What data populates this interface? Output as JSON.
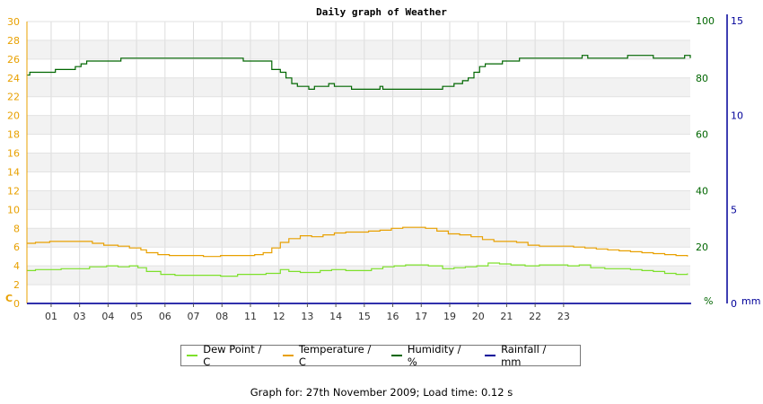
{
  "chart_data": {
    "type": "line",
    "title": "Daily graph of Weather",
    "axes": {
      "left": {
        "unit_label": "C",
        "ylim": [
          0,
          30
        ],
        "ticks": [
          0,
          2,
          4,
          6,
          8,
          10,
          12,
          14,
          16,
          18,
          20,
          22,
          24,
          26,
          28,
          30
        ],
        "color": "#e8a000"
      },
      "right_humidity": {
        "unit_label": "%",
        "ylim": [
          0,
          100
        ],
        "ticks": [
          0,
          20,
          40,
          60,
          80,
          100
        ],
        "color": "#006600"
      },
      "right_rainfall": {
        "unit_label": "mm",
        "ylim": [
          0,
          15
        ],
        "ticks": [
          0,
          5,
          10,
          15
        ],
        "color": "#000099"
      }
    },
    "x_range_hours": [
      0,
      23.3
    ],
    "x_tick_labels": [
      "01",
      "03",
      "04",
      "05",
      "06",
      "07",
      "08",
      "11",
      "12",
      "13",
      "14",
      "15",
      "16",
      "17",
      "19",
      "20",
      "21",
      "22",
      "23"
    ],
    "grid": true,
    "series": [
      {
        "name": "Dew Point / C",
        "axis": "left",
        "color": "#7de02a",
        "points": [
          [
            0,
            3.5
          ],
          [
            0.3,
            3.6
          ],
          [
            0.9,
            3.6
          ],
          [
            1.2,
            3.7
          ],
          [
            1.8,
            3.7
          ],
          [
            2.2,
            3.9
          ],
          [
            2.8,
            4.0
          ],
          [
            3.2,
            3.9
          ],
          [
            3.6,
            4.0
          ],
          [
            3.9,
            3.8
          ],
          [
            4.2,
            3.4
          ],
          [
            4.7,
            3.1
          ],
          [
            5.2,
            3.0
          ],
          [
            6.0,
            3.0
          ],
          [
            6.8,
            2.9
          ],
          [
            7.4,
            3.1
          ],
          [
            8.0,
            3.1
          ],
          [
            8.4,
            3.2
          ],
          [
            8.9,
            3.6
          ],
          [
            9.2,
            3.4
          ],
          [
            9.6,
            3.3
          ],
          [
            9.9,
            3.3
          ],
          [
            10.3,
            3.5
          ],
          [
            10.7,
            3.6
          ],
          [
            11.2,
            3.5
          ],
          [
            11.6,
            3.5
          ],
          [
            12.1,
            3.7
          ],
          [
            12.5,
            3.9
          ],
          [
            12.9,
            4.0
          ],
          [
            13.3,
            4.1
          ],
          [
            13.7,
            4.1
          ],
          [
            14.1,
            4.0
          ],
          [
            14.6,
            3.7
          ],
          [
            15.0,
            3.8
          ],
          [
            15.4,
            3.9
          ],
          [
            15.8,
            4.0
          ],
          [
            16.2,
            4.3
          ],
          [
            16.6,
            4.2
          ],
          [
            17.0,
            4.1
          ],
          [
            17.5,
            4.0
          ],
          [
            18.0,
            4.1
          ],
          [
            18.5,
            4.1
          ],
          [
            19.0,
            4.0
          ],
          [
            19.4,
            4.1
          ],
          [
            19.8,
            3.8
          ],
          [
            20.3,
            3.7
          ],
          [
            20.8,
            3.7
          ],
          [
            21.2,
            3.6
          ],
          [
            21.6,
            3.5
          ],
          [
            22.0,
            3.4
          ],
          [
            22.4,
            3.2
          ],
          [
            22.8,
            3.1
          ],
          [
            23.2,
            3.2
          ]
        ]
      },
      {
        "name": "Temperature / C",
        "axis": "left",
        "color": "#e8a000",
        "points": [
          [
            0,
            6.4
          ],
          [
            0.3,
            6.5
          ],
          [
            0.8,
            6.6
          ],
          [
            1.4,
            6.6
          ],
          [
            1.9,
            6.6
          ],
          [
            2.3,
            6.4
          ],
          [
            2.7,
            6.2
          ],
          [
            3.2,
            6.1
          ],
          [
            3.6,
            5.9
          ],
          [
            4.0,
            5.7
          ],
          [
            4.2,
            5.4
          ],
          [
            4.6,
            5.2
          ],
          [
            5.0,
            5.1
          ],
          [
            5.6,
            5.1
          ],
          [
            6.2,
            5.0
          ],
          [
            6.8,
            5.1
          ],
          [
            7.4,
            5.1
          ],
          [
            8.0,
            5.2
          ],
          [
            8.3,
            5.4
          ],
          [
            8.6,
            5.9
          ],
          [
            8.9,
            6.5
          ],
          [
            9.2,
            6.9
          ],
          [
            9.6,
            7.2
          ],
          [
            10.0,
            7.1
          ],
          [
            10.4,
            7.3
          ],
          [
            10.8,
            7.5
          ],
          [
            11.2,
            7.6
          ],
          [
            11.6,
            7.6
          ],
          [
            12.0,
            7.7
          ],
          [
            12.4,
            7.8
          ],
          [
            12.8,
            8.0
          ],
          [
            13.2,
            8.1
          ],
          [
            13.6,
            8.1
          ],
          [
            14.0,
            8.0
          ],
          [
            14.4,
            7.7
          ],
          [
            14.8,
            7.4
          ],
          [
            15.2,
            7.3
          ],
          [
            15.6,
            7.1
          ],
          [
            16.0,
            6.8
          ],
          [
            16.4,
            6.6
          ],
          [
            16.8,
            6.6
          ],
          [
            17.2,
            6.5
          ],
          [
            17.6,
            6.2
          ],
          [
            18.0,
            6.1
          ],
          [
            18.6,
            6.1
          ],
          [
            19.2,
            6.0
          ],
          [
            19.6,
            5.9
          ],
          [
            20.0,
            5.8
          ],
          [
            20.4,
            5.7
          ],
          [
            20.8,
            5.6
          ],
          [
            21.2,
            5.5
          ],
          [
            21.6,
            5.4
          ],
          [
            22.0,
            5.3
          ],
          [
            22.4,
            5.2
          ],
          [
            22.8,
            5.1
          ],
          [
            23.2,
            5.0
          ]
        ]
      },
      {
        "name": "Humidity / %",
        "axis": "right_humidity",
        "color": "#006600",
        "points": [
          [
            0,
            81
          ],
          [
            0.1,
            82
          ],
          [
            0.9,
            82
          ],
          [
            1.0,
            83
          ],
          [
            1.5,
            83
          ],
          [
            1.7,
            84
          ],
          [
            1.9,
            85
          ],
          [
            2.1,
            86
          ],
          [
            3.0,
            86
          ],
          [
            3.3,
            87
          ],
          [
            6.0,
            87
          ],
          [
            7.4,
            87
          ],
          [
            7.6,
            86
          ],
          [
            8.4,
            86
          ],
          [
            8.6,
            83
          ],
          [
            8.9,
            82
          ],
          [
            9.1,
            80
          ],
          [
            9.3,
            78
          ],
          [
            9.5,
            77
          ],
          [
            9.7,
            77
          ],
          [
            9.9,
            76
          ],
          [
            10.1,
            77
          ],
          [
            10.5,
            77
          ],
          [
            10.6,
            78
          ],
          [
            10.8,
            77
          ],
          [
            11.2,
            77
          ],
          [
            11.4,
            76
          ],
          [
            12.2,
            76
          ],
          [
            12.4,
            77
          ],
          [
            12.5,
            76
          ],
          [
            13.2,
            76
          ],
          [
            14.0,
            76
          ],
          [
            14.6,
            77
          ],
          [
            15.0,
            78
          ],
          [
            15.3,
            79
          ],
          [
            15.5,
            80
          ],
          [
            15.7,
            82
          ],
          [
            15.9,
            84
          ],
          [
            16.1,
            85
          ],
          [
            16.4,
            85
          ],
          [
            16.7,
            86
          ],
          [
            17.1,
            86
          ],
          [
            17.3,
            87
          ],
          [
            18.3,
            87
          ],
          [
            19.0,
            87
          ],
          [
            19.5,
            88
          ],
          [
            19.7,
            87
          ],
          [
            20.8,
            87
          ],
          [
            21.1,
            88
          ],
          [
            21.7,
            88
          ],
          [
            22.0,
            87
          ],
          [
            23.0,
            87
          ],
          [
            23.1,
            88
          ],
          [
            23.3,
            87
          ]
        ]
      },
      {
        "name": "Rainfall / mm",
        "axis": "right_rainfall",
        "color": "#000099",
        "points": [
          [
            0,
            0
          ],
          [
            23.3,
            0
          ]
        ]
      }
    ]
  },
  "footer": {
    "text": "Graph for: 27th November 2009; Load time: 0.12 s"
  }
}
